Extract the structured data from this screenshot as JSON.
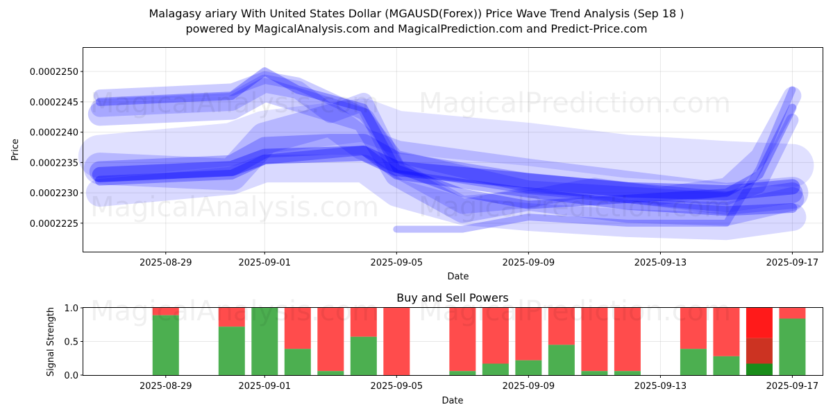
{
  "title_line1": "Malagasy ariary With United States Dollar (MGAUSD(Forex)) Price Wave Trend Analysis (Sep 18 )",
  "title_line2": "powered by MagicalAnalysis.com and MagicalPrediction.com and Predict-Price.com",
  "watermarks": [
    "MagicalAnalysis.com",
    "MagicalPrediction.com"
  ],
  "chart_data": [
    {
      "type": "line",
      "xlabel": "Date",
      "ylabel": "Price",
      "x_ticks": [
        "2025-08-29",
        "2025-09-01",
        "2025-09-05",
        "2025-09-09",
        "2025-09-13",
        "2025-09-17"
      ],
      "y_ticks": [
        "0.0002225",
        "0.0002230",
        "0.0002235",
        "0.0002240",
        "0.0002245",
        "0.0002250"
      ],
      "xlim": [
        "2025-08-26T12:00",
        "2025-09-17T22:00"
      ],
      "ylim": [
        0.00022203,
        0.00022539
      ],
      "band_color": "#0000ff",
      "grid": true,
      "series": [
        {
          "x": [
            "2025-08-27",
            "2025-08-31",
            "2025-09-01",
            "2025-09-04",
            "2025-09-05",
            "2025-09-09",
            "2025-09-12",
            "2025-09-15",
            "2025-09-17"
          ],
          "values": [
            0.0002233,
            0.0002234,
            0.0002236,
            0.00022365,
            0.0002234,
            0.0002232,
            0.00022305,
            0.000223,
            0.0002231
          ]
        },
        {
          "x": [
            "2025-08-27",
            "2025-08-31",
            "2025-09-01",
            "2025-09-03",
            "2025-09-04",
            "2025-09-05",
            "2025-09-09",
            "2025-09-12",
            "2025-09-15",
            "2025-09-17"
          ],
          "values": [
            0.00022335,
            0.00022345,
            0.00022375,
            0.0002238,
            0.0002238,
            0.0002235,
            0.00022315,
            0.000223,
            0.00022285,
            0.000223
          ]
        },
        {
          "x": [
            "2025-08-27",
            "2025-08-31",
            "2025-09-01",
            "2025-09-04",
            "2025-09-05",
            "2025-09-09",
            "2025-09-12",
            "2025-09-15",
            "2025-09-17"
          ],
          "values": [
            0.0002232,
            0.0002233,
            0.00022355,
            0.0002237,
            0.0002233,
            0.000223,
            0.0002228,
            0.0002227,
            0.00022275
          ]
        },
        {
          "x": [
            "2025-08-27",
            "2025-08-31",
            "2025-09-01",
            "2025-09-03",
            "2025-09-04",
            "2025-09-05",
            "2025-09-09",
            "2025-09-12",
            "2025-09-15",
            "2025-09-17"
          ],
          "values": [
            0.0002234,
            0.0002233,
            0.0002239,
            0.0002242,
            0.0002238,
            0.0002236,
            0.0002233,
            0.0002231,
            0.0002229,
            0.000223
          ]
        },
        {
          "x": [
            "2025-08-27",
            "2025-08-31",
            "2025-09-01",
            "2025-09-02",
            "2025-09-04",
            "2025-09-05",
            "2025-09-09",
            "2025-09-12",
            "2025-09-15",
            "2025-09-16",
            "2025-09-17"
          ],
          "values": [
            0.0002246,
            0.0002247,
            0.0002249,
            0.0002248,
            0.0002243,
            0.0002236,
            0.0002231,
            0.000223,
            0.0002229,
            0.0002231,
            0.0002242
          ]
        },
        {
          "x": [
            "2025-08-27",
            "2025-08-31",
            "2025-09-01",
            "2025-09-02",
            "2025-09-04",
            "2025-09-05",
            "2025-09-07",
            "2025-09-09",
            "2025-09-12",
            "2025-09-15",
            "2025-09-16",
            "2025-09-17"
          ],
          "values": [
            0.0002245,
            0.0002246,
            0.000225,
            0.0002247,
            0.0002244,
            0.0002234,
            0.000223,
            0.0002228,
            0.0002229,
            0.000223,
            0.0002233,
            0.0002244
          ]
        },
        {
          "x": [
            "2025-08-27",
            "2025-08-31",
            "2025-09-01",
            "2025-09-02",
            "2025-09-03",
            "2025-09-04",
            "2025-09-05",
            "2025-09-07",
            "2025-09-09",
            "2025-09-11",
            "2025-09-13",
            "2025-09-15",
            "2025-09-16",
            "2025-09-17"
          ],
          "values": [
            0.0002244,
            0.0002245,
            0.0002248,
            0.0002247,
            0.0002243,
            0.0002245,
            0.0002234,
            0.0002228,
            0.0002229,
            0.0002231,
            0.00022295,
            0.0002231,
            0.0002236,
            0.0002246
          ]
        },
        {
          "x": [
            "2025-08-27",
            "2025-08-31",
            "2025-09-01",
            "2025-09-04",
            "2025-09-05",
            "2025-09-07",
            "2025-09-09",
            "2025-09-12",
            "2025-09-15",
            "2025-09-17"
          ],
          "values": [
            0.0002243,
            0.0002244,
            0.0002247,
            0.0002242,
            0.0002233,
            0.0002227,
            0.0002229,
            0.0002227,
            0.00022265,
            0.0002229
          ]
        },
        {
          "x": [
            "2025-08-27",
            "2025-08-31",
            "2025-09-01",
            "2025-09-04",
            "2025-09-05",
            "2025-09-07",
            "2025-09-09",
            "2025-09-12",
            "2025-09-15",
            "2025-09-17"
          ],
          "values": [
            0.000223,
            0.0002232,
            0.0002234,
            0.0002234,
            0.000223,
            0.0002227,
            0.0002226,
            0.0002225,
            0.00022245,
            0.0002226
          ]
        },
        {
          "x": [
            "2025-08-27",
            "2025-08-31",
            "2025-09-01",
            "2025-09-04",
            "2025-09-05",
            "2025-09-09",
            "2025-09-12",
            "2025-09-15",
            "2025-09-17"
          ],
          "values": [
            0.0002236,
            0.0002238,
            0.000224,
            0.0002242,
            0.000224,
            0.0002238,
            0.0002236,
            0.0002235,
            0.00022345
          ]
        },
        {
          "x": [
            "2025-09-05",
            "2025-09-07",
            "2025-09-09",
            "2025-09-12",
            "2025-09-15",
            "2025-09-16",
            "2025-09-17"
          ],
          "values": [
            0.0002224,
            0.0002224,
            0.0002226,
            0.0002225,
            0.0002225,
            0.0002234,
            0.0002247
          ]
        }
      ]
    },
    {
      "type": "bar",
      "title": "Buy and Sell Powers",
      "xlabel": "Date",
      "ylabel": "Signal Strength",
      "y_ticks": [
        "0.0",
        "0.5",
        "1.0"
      ],
      "ylim": [
        0,
        1
      ],
      "buy_color": "#4caf50",
      "sell_color": "#ff4c4c",
      "bars": [
        {
          "date": "2025-08-29",
          "buy": 0.89,
          "sell": 0.11
        },
        {
          "date": "2025-08-31",
          "buy": 0.72,
          "sell": 0.28
        },
        {
          "date": "2025-09-01",
          "buy": 1.0,
          "sell": 0.0
        },
        {
          "date": "2025-09-02",
          "buy": 0.39,
          "sell": 0.61
        },
        {
          "date": "2025-09-03",
          "buy": 0.06,
          "sell": 0.94
        },
        {
          "date": "2025-09-04",
          "buy": 0.57,
          "sell": 0.43
        },
        {
          "date": "2025-09-05",
          "buy": 0.0,
          "sell": 1.0
        },
        {
          "date": "2025-09-07",
          "buy": 0.06,
          "sell": 0.94
        },
        {
          "date": "2025-09-08",
          "buy": 0.17,
          "sell": 0.83
        },
        {
          "date": "2025-09-09",
          "buy": 0.22,
          "sell": 0.78
        },
        {
          "date": "2025-09-10",
          "buy": 0.45,
          "sell": 0.55
        },
        {
          "date": "2025-09-11",
          "buy": 0.06,
          "sell": 0.94
        },
        {
          "date": "2025-09-12",
          "buy": 0.06,
          "sell": 0.94
        },
        {
          "date": "2025-09-14",
          "buy": 0.39,
          "sell": 0.61
        },
        {
          "date": "2025-09-15",
          "buy": 0.28,
          "sell": 0.72
        },
        {
          "date": "2025-09-16",
          "buy": 0.17,
          "sell": 0.83,
          "overlap": 0.55,
          "buy_color": "#1a8c1a",
          "overlap_color": "#cc3322",
          "sell_color": "#ff1a1a"
        },
        {
          "date": "2025-09-17",
          "buy": 0.84,
          "sell": 0.16
        }
      ]
    }
  ]
}
